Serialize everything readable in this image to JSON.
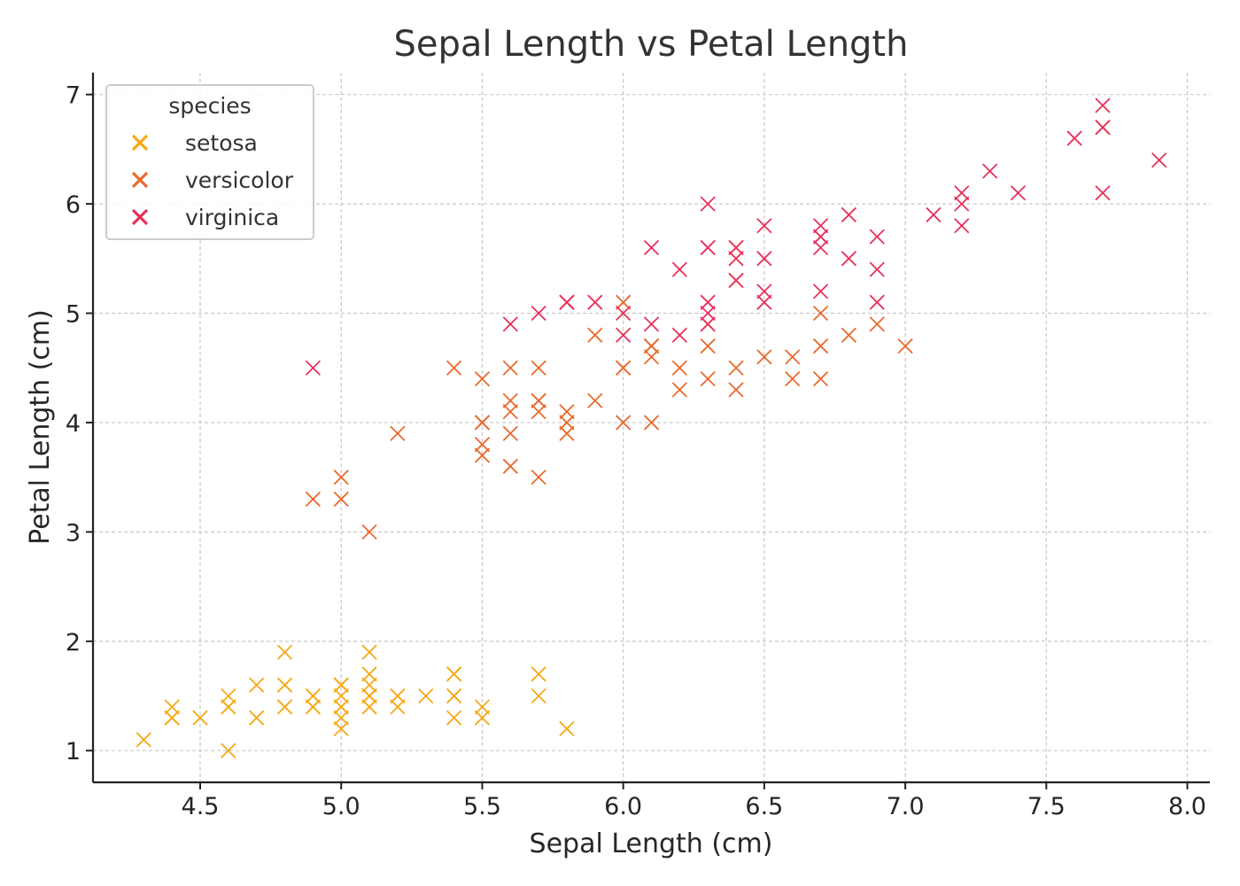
{
  "chart_data": {
    "type": "scatter",
    "title": "Sepal Length vs Petal Length",
    "xlabel": "Sepal Length (cm)",
    "ylabel": "Petal Length (cm)",
    "xlim": [
      4.12,
      8.08
    ],
    "ylim": [
      0.71,
      7.2
    ],
    "xticks": [
      "4.5",
      "5.0",
      "5.5",
      "6.0",
      "6.5",
      "7.0",
      "7.5",
      "8.0"
    ],
    "yticks": [
      "1",
      "2",
      "3",
      "4",
      "5",
      "6",
      "7"
    ],
    "grid": true,
    "legend": {
      "title": "species",
      "placement": "top-left"
    },
    "marker": "x",
    "series": [
      {
        "name": "setosa",
        "color": "#f5a914",
        "points": [
          [
            5.1,
            1.4
          ],
          [
            4.9,
            1.4
          ],
          [
            4.7,
            1.3
          ],
          [
            4.6,
            1.5
          ],
          [
            5.0,
            1.4
          ],
          [
            5.4,
            1.7
          ],
          [
            4.6,
            1.4
          ],
          [
            5.0,
            1.5
          ],
          [
            4.4,
            1.4
          ],
          [
            4.9,
            1.5
          ],
          [
            5.4,
            1.5
          ],
          [
            4.8,
            1.6
          ],
          [
            4.8,
            1.4
          ],
          [
            4.3,
            1.1
          ],
          [
            5.8,
            1.2
          ],
          [
            5.7,
            1.5
          ],
          [
            5.4,
            1.3
          ],
          [
            5.1,
            1.4
          ],
          [
            5.7,
            1.7
          ],
          [
            5.1,
            1.5
          ],
          [
            5.4,
            1.7
          ],
          [
            5.1,
            1.5
          ],
          [
            4.6,
            1.0
          ],
          [
            5.1,
            1.7
          ],
          [
            4.8,
            1.9
          ],
          [
            5.0,
            1.6
          ],
          [
            5.0,
            1.6
          ],
          [
            5.2,
            1.5
          ],
          [
            5.2,
            1.4
          ],
          [
            4.7,
            1.6
          ],
          [
            4.8,
            1.6
          ],
          [
            5.4,
            1.5
          ],
          [
            5.2,
            1.5
          ],
          [
            5.5,
            1.4
          ],
          [
            4.9,
            1.5
          ],
          [
            5.0,
            1.2
          ],
          [
            5.5,
            1.3
          ],
          [
            4.9,
            1.4
          ],
          [
            4.4,
            1.3
          ],
          [
            5.1,
            1.5
          ],
          [
            5.0,
            1.3
          ],
          [
            4.5,
            1.3
          ],
          [
            4.4,
            1.3
          ],
          [
            5.0,
            1.6
          ],
          [
            5.1,
            1.9
          ],
          [
            4.8,
            1.4
          ],
          [
            5.1,
            1.6
          ],
          [
            4.6,
            1.4
          ],
          [
            5.3,
            1.5
          ],
          [
            5.0,
            1.4
          ]
        ]
      },
      {
        "name": "versicolor",
        "color": "#e8692b",
        "points": [
          [
            7.0,
            4.7
          ],
          [
            6.4,
            4.5
          ],
          [
            6.9,
            4.9
          ],
          [
            5.5,
            4.0
          ],
          [
            6.5,
            4.6
          ],
          [
            5.7,
            4.5
          ],
          [
            6.3,
            4.7
          ],
          [
            4.9,
            3.3
          ],
          [
            6.6,
            4.6
          ],
          [
            5.2,
            3.9
          ],
          [
            5.0,
            3.5
          ],
          [
            5.9,
            4.2
          ],
          [
            6.0,
            4.0
          ],
          [
            6.1,
            4.7
          ],
          [
            5.6,
            3.6
          ],
          [
            6.7,
            4.4
          ],
          [
            5.6,
            4.5
          ],
          [
            5.8,
            4.1
          ],
          [
            6.2,
            4.5
          ],
          [
            5.6,
            3.9
          ],
          [
            5.9,
            4.8
          ],
          [
            6.1,
            4.0
          ],
          [
            6.3,
            4.9
          ],
          [
            6.1,
            4.7
          ],
          [
            6.4,
            4.3
          ],
          [
            6.6,
            4.4
          ],
          [
            6.8,
            4.8
          ],
          [
            6.7,
            5.0
          ],
          [
            6.0,
            4.5
          ],
          [
            5.7,
            3.5
          ],
          [
            5.5,
            3.8
          ],
          [
            5.5,
            3.7
          ],
          [
            5.8,
            3.9
          ],
          [
            6.0,
            5.1
          ],
          [
            5.4,
            4.5
          ],
          [
            6.0,
            4.5
          ],
          [
            6.7,
            4.7
          ],
          [
            6.3,
            4.4
          ],
          [
            5.6,
            4.1
          ],
          [
            5.5,
            4.0
          ],
          [
            5.5,
            4.4
          ],
          [
            6.1,
            4.6
          ],
          [
            5.8,
            4.0
          ],
          [
            5.0,
            3.3
          ],
          [
            5.6,
            4.2
          ],
          [
            5.7,
            4.2
          ],
          [
            5.7,
            4.2
          ],
          [
            6.2,
            4.3
          ],
          [
            5.1,
            3.0
          ],
          [
            5.7,
            4.1
          ]
        ]
      },
      {
        "name": "virginica",
        "color": "#e8305a",
        "points": [
          [
            6.3,
            6.0
          ],
          [
            5.8,
            5.1
          ],
          [
            7.1,
            5.9
          ],
          [
            6.3,
            5.6
          ],
          [
            6.5,
            5.8
          ],
          [
            7.6,
            6.6
          ],
          [
            4.9,
            4.5
          ],
          [
            7.3,
            6.3
          ],
          [
            6.7,
            5.8
          ],
          [
            7.2,
            6.1
          ],
          [
            6.5,
            5.1
          ],
          [
            6.4,
            5.3
          ],
          [
            6.8,
            5.5
          ],
          [
            5.7,
            5.0
          ],
          [
            5.8,
            5.1
          ],
          [
            6.4,
            5.3
          ],
          [
            6.5,
            5.5
          ],
          [
            7.7,
            6.7
          ],
          [
            7.7,
            6.9
          ],
          [
            6.0,
            5.0
          ],
          [
            6.9,
            5.7
          ],
          [
            5.6,
            4.9
          ],
          [
            7.7,
            6.7
          ],
          [
            6.3,
            4.9
          ],
          [
            6.7,
            5.7
          ],
          [
            7.2,
            6.0
          ],
          [
            6.2,
            4.8
          ],
          [
            6.1,
            4.9
          ],
          [
            6.4,
            5.6
          ],
          [
            7.2,
            5.8
          ],
          [
            7.4,
            6.1
          ],
          [
            7.9,
            6.4
          ],
          [
            6.4,
            5.6
          ],
          [
            6.3,
            5.1
          ],
          [
            6.1,
            5.6
          ],
          [
            7.7,
            6.1
          ],
          [
            6.3,
            5.6
          ],
          [
            6.4,
            5.5
          ],
          [
            6.0,
            4.8
          ],
          [
            6.9,
            5.4
          ],
          [
            6.7,
            5.6
          ],
          [
            6.9,
            5.1
          ],
          [
            5.8,
            5.1
          ],
          [
            6.8,
            5.9
          ],
          [
            6.7,
            5.7
          ],
          [
            6.7,
            5.2
          ],
          [
            6.3,
            5.0
          ],
          [
            6.5,
            5.2
          ],
          [
            6.2,
            5.4
          ],
          [
            5.9,
            5.1
          ]
        ]
      }
    ]
  }
}
